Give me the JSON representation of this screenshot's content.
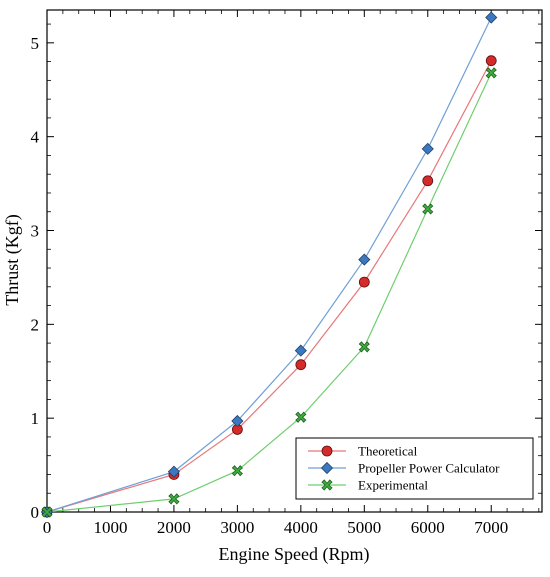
{
  "chart_data": {
    "type": "line",
    "xlabel": "Engine Speed (Rpm)",
    "ylabel": "Thrust (Kgf)",
    "xlim": [
      0,
      7800
    ],
    "ylim": [
      0,
      5.35
    ],
    "xticks": [
      0,
      1000,
      2000,
      3000,
      4000,
      5000,
      6000,
      7000
    ],
    "yticks": [
      0,
      1,
      2,
      3,
      4,
      5
    ],
    "x": [
      0,
      2000,
      3000,
      4000,
      5000,
      6000,
      7000
    ],
    "grid": false,
    "legend_position": "bottom-right",
    "series": [
      {
        "name": "Theoretical",
        "values": [
          0,
          0.4,
          0.88,
          1.57,
          2.45,
          3.53,
          4.81
        ],
        "color": "#e8777a",
        "marker": "circle",
        "marker_color": "#d42a2a"
      },
      {
        "name": "Propeller Power Calculator",
        "values": [
          0,
          0.43,
          0.97,
          1.72,
          2.69,
          3.87,
          5.27
        ],
        "color": "#6f9fd6",
        "marker": "diamond",
        "marker_color": "#3c78c0"
      },
      {
        "name": "Experimental",
        "values": [
          0,
          0.14,
          0.44,
          1.01,
          1.76,
          3.23,
          4.68
        ],
        "color": "#6fcf6f",
        "marker": "x-cross",
        "marker_color": "#3fae3f"
      }
    ]
  }
}
